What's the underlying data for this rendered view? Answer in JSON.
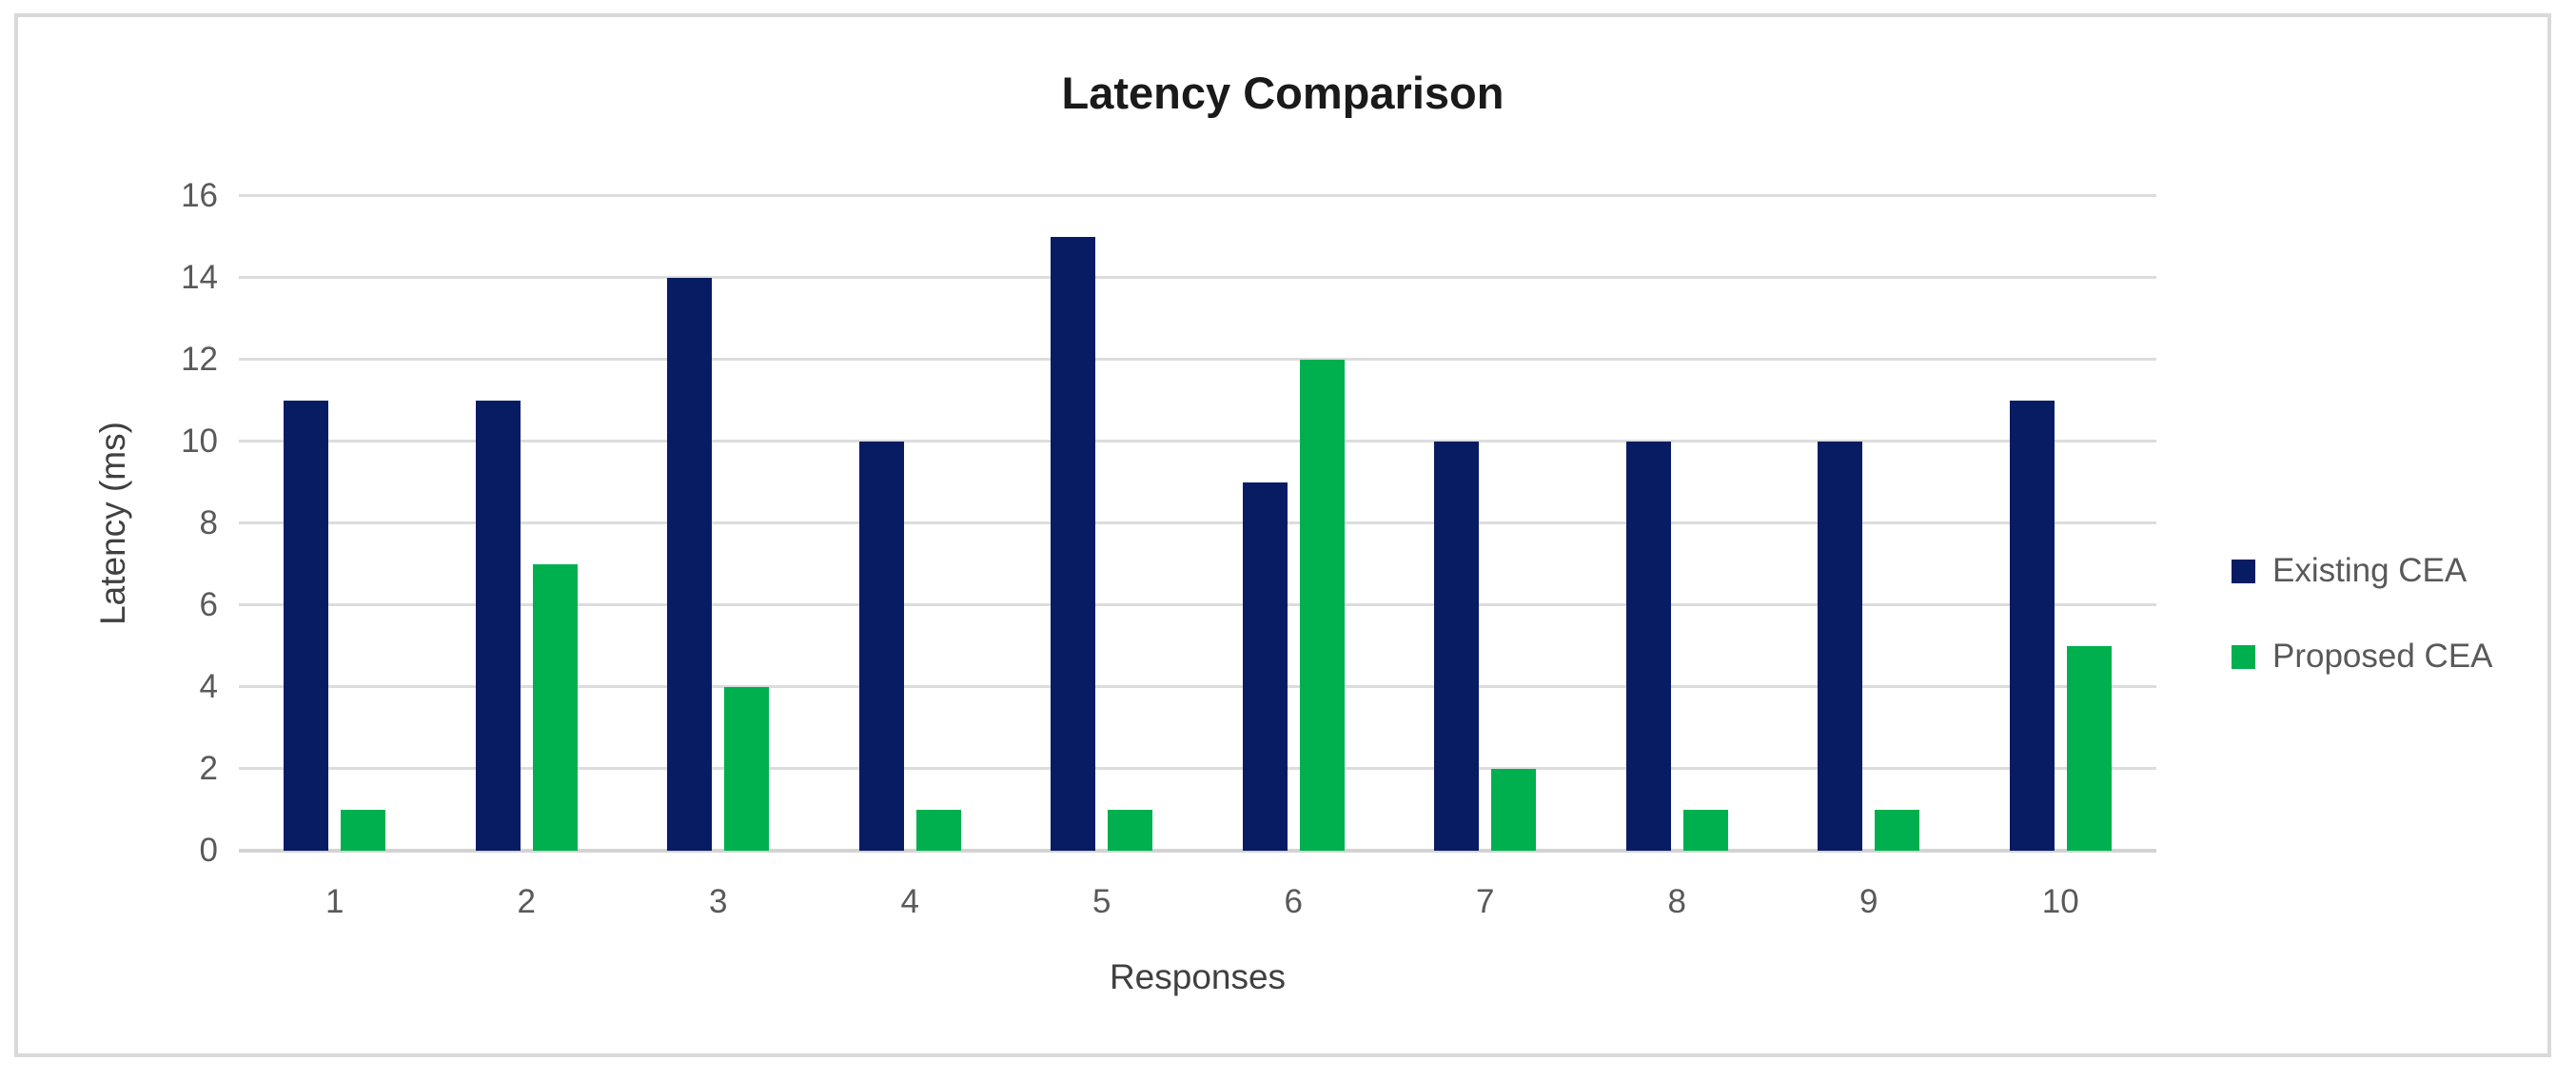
{
  "chart_data": {
    "type": "bar",
    "title": "Latency Comparison",
    "xlabel": "Responses",
    "ylabel": "Latency (ms)",
    "categories": [
      "1",
      "2",
      "3",
      "4",
      "5",
      "6",
      "7",
      "8",
      "9",
      "10"
    ],
    "series": [
      {
        "name": "Existing CEA",
        "color": "#071c62",
        "values": [
          11,
          11,
          14,
          10,
          15,
          9,
          10,
          10,
          10,
          11
        ]
      },
      {
        "name": "Proposed CEA",
        "color": "#00b04e",
        "values": [
          1,
          7,
          4,
          1,
          1,
          12,
          2,
          1,
          1,
          5
        ]
      }
    ],
    "ylim": [
      0,
      16
    ],
    "ytick_step": 2,
    "yticks": [
      "16",
      "14",
      "12",
      "10",
      "8",
      "6",
      "4",
      "2",
      "0"
    ],
    "grid": true,
    "legend_position": "right",
    "colors": {
      "gridline": "#dcdcdc",
      "axis_line": "#d3d3d3",
      "tick_label": "#595959",
      "axis_title": "#404040",
      "title": "#1a1a1a",
      "frame_border": "#d9d9d9",
      "background": "#ffffff"
    }
  }
}
